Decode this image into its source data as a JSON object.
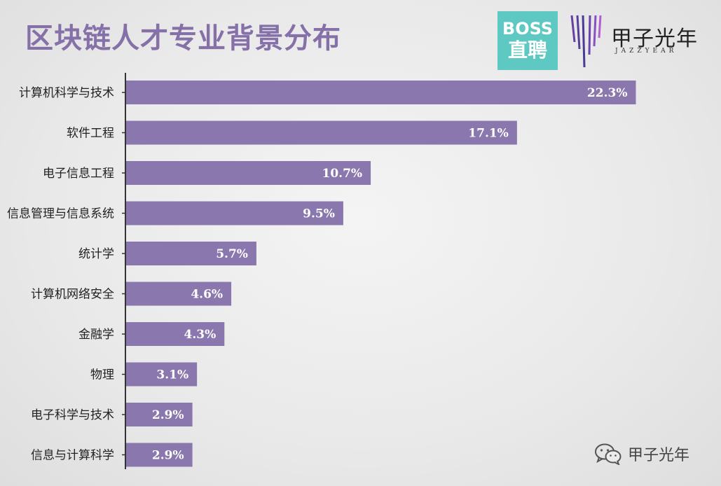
{
  "title": "区块链人才专业背景分布",
  "logos": {
    "boss_line1": "BOSS",
    "boss_line2": "直聘",
    "jz_name": "甲子光年",
    "jz_sub": "JAZZYEAR"
  },
  "watermark": "甲子光年",
  "colors": {
    "bar": "#8a77ad",
    "title": "#8571a8",
    "axis": "#333333",
    "label": "#ffffff",
    "boss": "#5ec8c2"
  },
  "chart_data": {
    "type": "bar",
    "orientation": "horizontal",
    "categories": [
      "计算机科学与技术",
      "软件工程",
      "电子信息工程",
      "信息管理与信息系统",
      "统计学",
      "计算机网络安全",
      "金融学",
      "物理",
      "电子科学与技术",
      "信息与计算科学"
    ],
    "values": [
      22.3,
      17.1,
      10.7,
      9.5,
      5.7,
      4.6,
      4.3,
      3.1,
      2.9,
      2.9
    ],
    "value_labels": [
      "22.3%",
      "17.1%",
      "10.7%",
      "9.5%",
      "5.7%",
      "4.6%",
      "4.3%",
      "3.1%",
      "2.9%",
      "2.9%"
    ],
    "xlim": [
      0,
      24.4
    ],
    "grid": false,
    "legend": "none"
  }
}
